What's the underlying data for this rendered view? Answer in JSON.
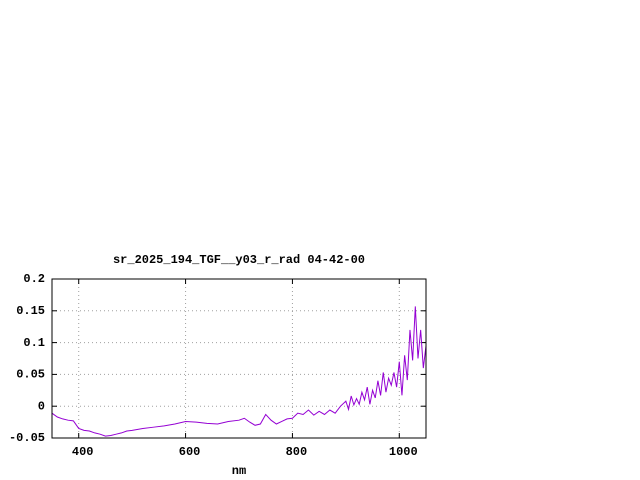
{
  "chart_data": {
    "type": "line",
    "title": "sr_2025_194_TGF__y03_r_rad 04-42-00",
    "x_label": "nm",
    "xlim": [
      350,
      1050
    ],
    "xticks": [
      400,
      600,
      800,
      1000
    ],
    "ylim": [
      -0.05,
      0.2
    ],
    "yticks": [
      -0.05,
      0,
      0.05,
      0.1,
      0.15,
      0.2
    ],
    "grid": true,
    "series": [
      {
        "color": "#9400d3",
        "x": [
          350,
          360,
          370,
          380,
          390,
          400,
          410,
          420,
          430,
          440,
          450,
          460,
          470,
          480,
          490,
          500,
          520,
          540,
          560,
          580,
          600,
          620,
          640,
          660,
          680,
          700,
          710,
          720,
          730,
          740,
          750,
          760,
          770,
          780,
          790,
          800,
          810,
          820,
          830,
          840,
          850,
          860,
          870,
          880,
          890,
          900,
          905,
          910,
          915,
          920,
          925,
          930,
          935,
          940,
          945,
          950,
          955,
          960,
          965,
          970,
          975,
          980,
          985,
          990,
          995,
          1000,
          1005,
          1010,
          1015,
          1020,
          1025,
          1030,
          1035,
          1040,
          1045,
          1050
        ],
        "values": [
          -0.011,
          -0.017,
          -0.02,
          -0.022,
          -0.023,
          -0.035,
          -0.038,
          -0.039,
          -0.042,
          -0.044,
          -0.047,
          -0.046,
          -0.044,
          -0.042,
          -0.039,
          -0.038,
          -0.035,
          -0.033,
          -0.031,
          -0.028,
          -0.024,
          -0.025,
          -0.027,
          -0.028,
          -0.024,
          -0.022,
          -0.019,
          -0.025,
          -0.03,
          -0.028,
          -0.013,
          -0.022,
          -0.028,
          -0.024,
          -0.02,
          -0.019,
          -0.011,
          -0.013,
          -0.006,
          -0.014,
          -0.008,
          -0.013,
          -0.006,
          -0.011,
          0,
          0.008,
          -0.005,
          0.016,
          0.002,
          0.012,
          0.003,
          0.022,
          0.01,
          0.03,
          0.003,
          0.025,
          0.013,
          0.04,
          0.017,
          0.053,
          0.022,
          0.044,
          0.033,
          0.053,
          0.03,
          0.07,
          0.017,
          0.08,
          0.041,
          0.12,
          0.072,
          0.157,
          0.075,
          0.12,
          0.06,
          0.095
        ]
      }
    ]
  }
}
